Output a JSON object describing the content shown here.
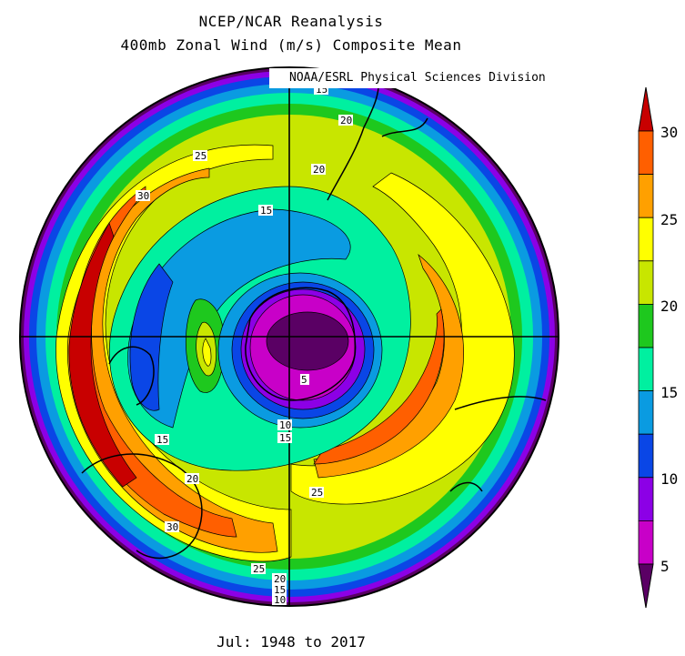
{
  "header": {
    "title_line1": "NCEP/NCAR Reanalysis",
    "title_line2": "400mb Zonal Wind (m/s) Composite Mean",
    "credit": "NOAA/ESRL Physical Sciences Division"
  },
  "footer": {
    "period": "Jul: 1948 to 2017"
  },
  "colorbar": {
    "ticks": [
      "30",
      "25",
      "20",
      "15",
      "10",
      "5"
    ],
    "levels": [
      {
        "from": 30,
        "color": "#c80000"
      },
      {
        "from": 27.5,
        "color": "#ff5f00"
      },
      {
        "from": 25,
        "color": "#ffa000"
      },
      {
        "from": 22.5,
        "color": "#ffff00"
      },
      {
        "from": 20,
        "color": "#c8e600"
      },
      {
        "from": 17.5,
        "color": "#1ec81e"
      },
      {
        "from": 15,
        "color": "#00f0a0"
      },
      {
        "from": 12.5,
        "color": "#0a9be1"
      },
      {
        "from": 10,
        "color": "#0a46e6"
      },
      {
        "from": 7.5,
        "color": "#8c00e6"
      },
      {
        "from": 5,
        "color": "#c800c8"
      },
      {
        "from": 2.5,
        "color": "#5a0064"
      }
    ]
  },
  "contour_labels": [
    "15",
    "20",
    "20",
    "25",
    "30",
    "15",
    "5",
    "10",
    "15",
    "15",
    "20",
    "25",
    "30",
    "25",
    "20",
    "15",
    "10"
  ]
}
